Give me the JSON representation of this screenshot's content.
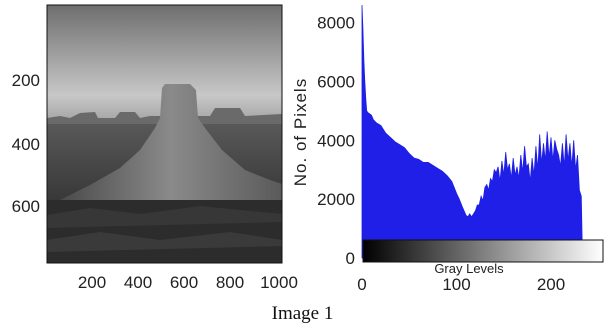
{
  "figure_caption": "Image 1",
  "image_panel": {
    "y_ticks": [
      "200",
      "400",
      "600"
    ],
    "x_ticks": [
      "200",
      "400",
      "600",
      "800",
      "1000"
    ]
  },
  "chart_data": {
    "type": "area",
    "title": "",
    "xlabel": "Gray Levels",
    "ylabel": "No. of Pixels",
    "xlim": [
      0,
      255
    ],
    "ylim": [
      0,
      8600
    ],
    "x_ticks": [
      "0",
      "100",
      "200"
    ],
    "y_ticks": [
      "0",
      "2000",
      "4000",
      "6000",
      "8000"
    ],
    "fill_color": "#1f1fe8",
    "colorbar": "grayscale black-to-white",
    "x": [
      0,
      1,
      2,
      3,
      4,
      5,
      6,
      8,
      10,
      12,
      15,
      20,
      25,
      30,
      35,
      40,
      45,
      50,
      55,
      60,
      65,
      70,
      75,
      80,
      85,
      90,
      95,
      100,
      103,
      106,
      108,
      110,
      112,
      114,
      116,
      118,
      120,
      122,
      124,
      126,
      128,
      130,
      132,
      134,
      136,
      138,
      140,
      142,
      144,
      146,
      148,
      150,
      152,
      154,
      156,
      158,
      160,
      162,
      164,
      166,
      168,
      170,
      172,
      174,
      176,
      178,
      180,
      182,
      184,
      186,
      188,
      190,
      192,
      194,
      196,
      198,
      200,
      202,
      204,
      206,
      208,
      210,
      212,
      214,
      216,
      218,
      220,
      222,
      224,
      226,
      228,
      230,
      232,
      233,
      234,
      235,
      236
    ],
    "values": [
      8600,
      7800,
      6700,
      6000,
      5400,
      5000,
      4950,
      4900,
      4850,
      4700,
      4600,
      4500,
      4250,
      4100,
      3950,
      3850,
      3750,
      3550,
      3400,
      3350,
      3250,
      3250,
      3150,
      3050,
      2950,
      2800,
      2600,
      2200,
      2000,
      1750,
      1600,
      1450,
      1400,
      1500,
      1400,
      1500,
      1600,
      1800,
      1800,
      2100,
      1950,
      2400,
      2500,
      2300,
      2700,
      2600,
      3000,
      2900,
      3100,
      2600,
      3300,
      2800,
      3600,
      3000,
      3200,
      2700,
      3400,
      2800,
      3100,
      2700,
      3500,
      2900,
      3800,
      3100,
      3200,
      2600,
      3400,
      2800,
      3800,
      3000,
      4200,
      3200,
      3900,
      3300,
      4300,
      3400,
      4100,
      3300,
      4000,
      3700,
      3500,
      3100,
      3900,
      3100,
      4200,
      3300,
      3900,
      3100,
      4000,
      3000,
      3500,
      2300,
      2100,
      500,
      200,
      50,
      0
    ]
  }
}
